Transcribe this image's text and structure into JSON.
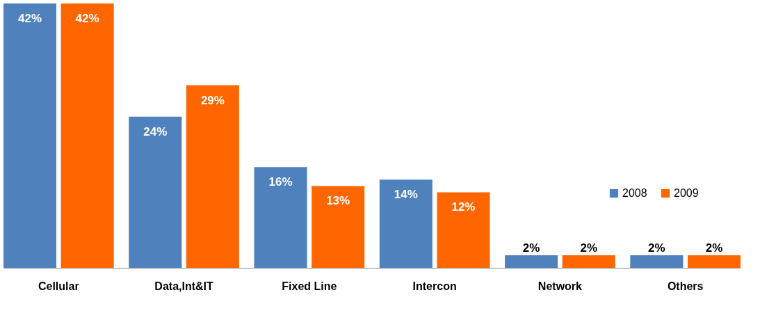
{
  "chart_data": {
    "type": "bar",
    "categories": [
      "Cellular",
      "Data,Int&IT",
      "Fixed Line",
      "Intercon",
      "Network",
      "Others"
    ],
    "series": [
      {
        "name": "2008",
        "color": "#4f81bd",
        "values": [
          42,
          24,
          16,
          14,
          2,
          2
        ],
        "value_labels": [
          "42%",
          "24%",
          "16%",
          "14%",
          "2%",
          "2%"
        ]
      },
      {
        "name": "2009",
        "color": "#ff6600",
        "values": [
          42,
          29,
          13,
          12,
          2,
          2
        ],
        "value_labels": [
          "42%",
          "29%",
          "13%",
          "12%",
          "2%",
          "2%"
        ]
      }
    ],
    "legend": "right",
    "grid": false
  }
}
